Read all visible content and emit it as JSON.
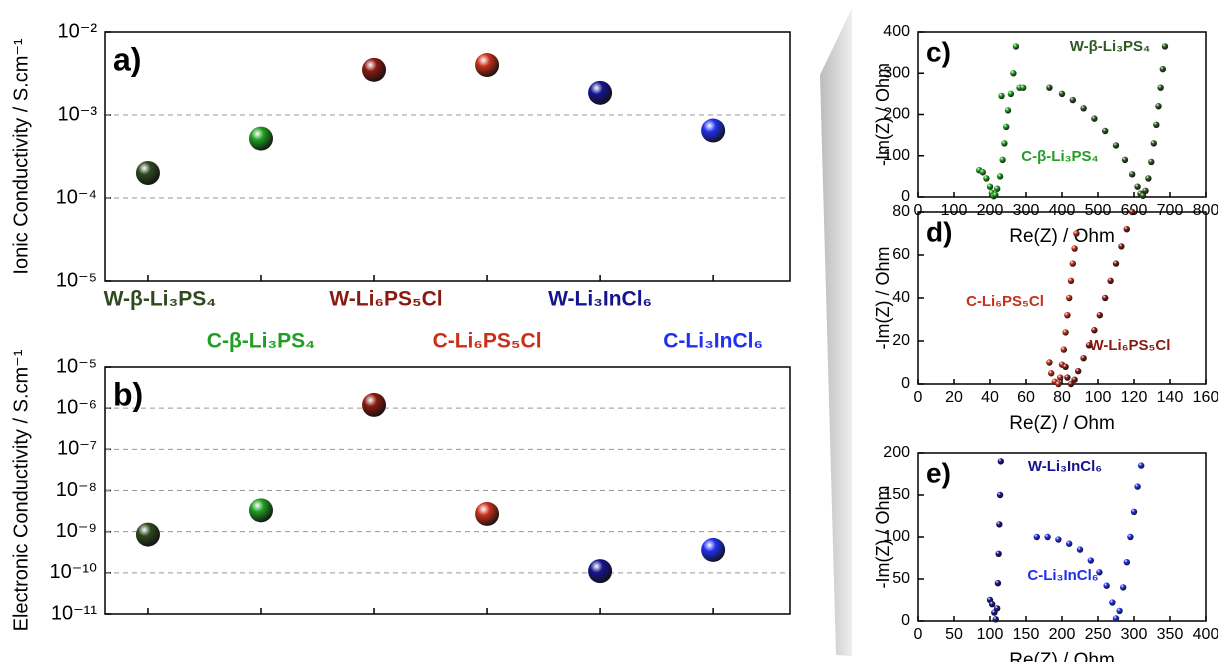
{
  "chart_data": [
    {
      "type": "scatter",
      "label": "a)",
      "ylabel": "Ionic Conductivity / S.cm⁻¹",
      "log_y": true,
      "grid": true,
      "categories": [
        "W-β-Li₃PS₄",
        "C-β-Li₃PS₄",
        "W-Li₆PS₅Cl",
        "C-Li₆PS₅Cl",
        "W-Li₃InCl₆",
        "C-Li₃InCl₆"
      ],
      "values": [
        0.0002,
        0.00052,
        0.0035,
        0.004,
        0.00185,
        0.00065
      ],
      "colors": [
        "#2e4a1f",
        "#1f9e22",
        "#8a1a10",
        "#c8301a",
        "#14148f",
        "#2030ee"
      ],
      "ylim": [
        1e-05,
        0.01
      ],
      "yticks": [
        {
          "value": 1e-05,
          "label": "10⁻⁵"
        },
        {
          "value": 0.0001,
          "label": "10⁻⁴"
        },
        {
          "value": 0.001,
          "label": "10⁻³"
        },
        {
          "value": 0.01,
          "label": "10⁻²"
        }
      ]
    },
    {
      "type": "scatter",
      "label": "b)",
      "ylabel": "Electronic Conductivity / S.cm⁻¹",
      "log_y": true,
      "grid": true,
      "values": [
        8.5e-10,
        3.3e-09,
        1.2e-06,
        2.7e-09,
        1.1e-10,
        3.6e-10
      ],
      "colors": [
        "#2e4a1f",
        "#1f9e22",
        "#8a1a10",
        "#c8301a",
        "#14148f",
        "#2030ee"
      ],
      "ylim": [
        1e-11,
        1e-05
      ],
      "yticks": [
        {
          "value": 1e-11,
          "label": "10⁻¹¹"
        },
        {
          "value": 1e-10,
          "label": "10⁻¹⁰"
        },
        {
          "value": 1e-09,
          "label": "10⁻⁹"
        },
        {
          "value": 1e-08,
          "label": "10⁻⁸"
        },
        {
          "value": 1e-07,
          "label": "10⁻⁷"
        },
        {
          "value": 1e-06,
          "label": "10⁻⁶"
        },
        {
          "value": 1e-05,
          "label": "10⁻⁵"
        }
      ]
    },
    {
      "type": "nyquist",
      "label": "c)",
      "xlabel": "Re(Z) / Ohm",
      "ylabel": "-Im(Z) / Ohm",
      "xlim": [
        0,
        800
      ],
      "ylim": [
        0,
        400
      ],
      "xticks": [
        0,
        100,
        200,
        300,
        400,
        500,
        600,
        700,
        800
      ],
      "yticks": [
        0,
        100,
        200,
        300,
        400
      ],
      "series": [
        {
          "name": "W-β-Li₃PS₄",
          "color": "#2e5a22",
          "x": [
            365,
            400,
            430,
            460,
            490,
            520,
            550,
            575,
            595,
            610,
            618,
            625,
            632,
            640,
            648,
            655,
            662,
            668,
            674,
            680,
            686
          ],
          "values": [
            265,
            250,
            235,
            215,
            190,
            160,
            125,
            90,
            55,
            25,
            8,
            3,
            15,
            45,
            85,
            130,
            175,
            220,
            265,
            310,
            365
          ]
        },
        {
          "name": "C-β-Li₃PS₄",
          "color": "#22a022",
          "x": [
            170,
            180,
            190,
            200,
            205,
            210,
            215,
            220,
            228,
            235,
            240,
            245,
            250,
            258,
            265,
            272,
            232,
            282,
            292
          ],
          "values": [
            65,
            60,
            45,
            25,
            10,
            2,
            5,
            20,
            50,
            90,
            130,
            170,
            210,
            250,
            300,
            365,
            245,
            265,
            265
          ]
        }
      ]
    },
    {
      "type": "nyquist",
      "label": "d)",
      "xlabel": "Re(Z) / Ohm",
      "ylabel": "-Im(Z) / Ohm",
      "xlim": [
        0,
        160
      ],
      "ylim": [
        0,
        80
      ],
      "xticks": [
        0,
        20,
        40,
        60,
        80,
        100,
        120,
        140,
        160
      ],
      "yticks": [
        0,
        20,
        40,
        60,
        80
      ],
      "series": [
        {
          "name": "C-Li₆PS₅Cl",
          "color": "#c8301a",
          "x": [
            73,
            74,
            76,
            78,
            79,
            80,
            81,
            82,
            83,
            84,
            85,
            86,
            87,
            88
          ],
          "values": [
            10,
            5,
            1,
            0,
            3,
            9,
            16,
            24,
            32,
            40,
            48,
            56,
            63,
            70
          ]
        },
        {
          "name": "W-Li₆PS₅Cl",
          "color": "#8a1a10",
          "x": [
            82,
            83,
            85,
            87,
            89,
            92,
            95,
            98,
            101,
            104,
            107,
            110,
            113,
            116,
            119
          ],
          "values": [
            8,
            3,
            0,
            2,
            6,
            12,
            18,
            25,
            32,
            40,
            48,
            56,
            64,
            72,
            80
          ]
        }
      ]
    },
    {
      "type": "nyquist",
      "label": "e)",
      "xlabel": "Re(Z) / Ohm",
      "ylabel": "-Im(Z) / Ohm",
      "xlim": [
        0,
        400
      ],
      "ylim": [
        0,
        200
      ],
      "xticks": [
        0,
        50,
        100,
        150,
        200,
        250,
        300,
        350,
        400
      ],
      "yticks": [
        0,
        50,
        100,
        150,
        200
      ],
      "series": [
        {
          "name": "W-Li₃InCl₆",
          "color": "#14148f",
          "x": [
            100,
            103,
            106,
            108,
            110,
            111,
            112,
            113,
            114,
            115
          ],
          "values": [
            25,
            20,
            10,
            2,
            15,
            45,
            80,
            115,
            150,
            190
          ]
        },
        {
          "name": "C-Li₃InCl₆",
          "color": "#2030ee",
          "x": [
            165,
            180,
            195,
            210,
            225,
            240,
            252,
            262,
            270,
            275,
            280,
            285,
            290,
            295,
            300,
            305,
            310
          ],
          "values": [
            100,
            100,
            97,
            92,
            85,
            72,
            58,
            42,
            22,
            3,
            12,
            40,
            70,
            100,
            130,
            160,
            185
          ]
        }
      ]
    }
  ]
}
